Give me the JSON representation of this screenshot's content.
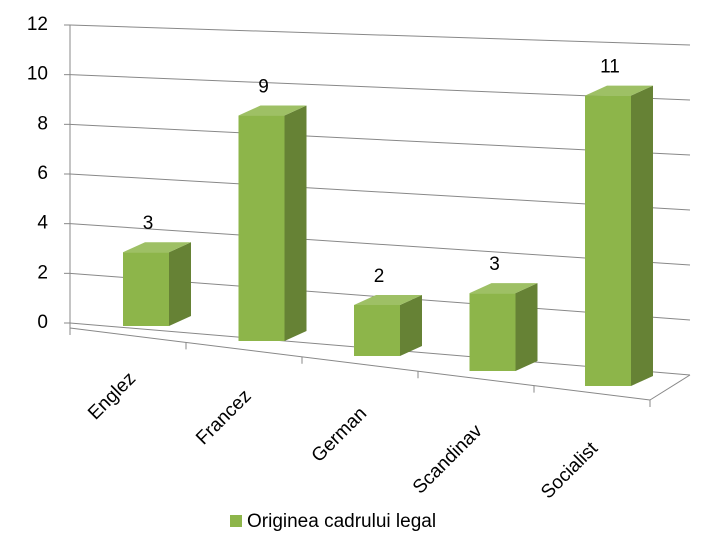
{
  "chart_data": {
    "type": "bar",
    "categories": [
      "Englez",
      "Francez",
      "German",
      "Scandinav",
      "Socialist"
    ],
    "series": [
      {
        "name": "Originea cadrului legal",
        "color": "#8db54a",
        "values": [
          3,
          9,
          2,
          3,
          11
        ]
      }
    ],
    "ylim": [
      0,
      12
    ],
    "yticks": [
      0,
      2,
      4,
      6,
      8,
      10,
      12
    ],
    "grid": true
  }
}
